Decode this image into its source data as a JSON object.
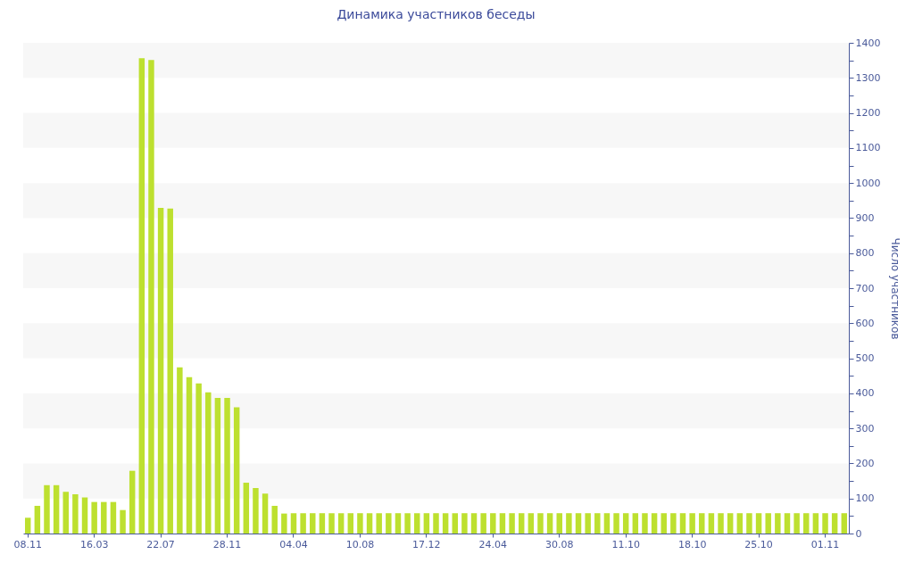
{
  "chart_data": {
    "type": "bar",
    "title": "Динамика участников беседы",
    "ylabel": "Число участников",
    "categories": [
      "08.11",
      null,
      null,
      null,
      null,
      null,
      null,
      "16.03",
      null,
      null,
      null,
      null,
      null,
      null,
      "22.07",
      null,
      null,
      null,
      null,
      null,
      null,
      "28.11",
      null,
      null,
      null,
      null,
      null,
      null,
      "04.04",
      null,
      null,
      null,
      null,
      null,
      null,
      "10.08",
      null,
      null,
      null,
      null,
      null,
      null,
      "17.12",
      null,
      null,
      null,
      null,
      null,
      null,
      "24.04",
      null,
      null,
      null,
      null,
      null,
      null,
      "30.08",
      null,
      null,
      null,
      null,
      null,
      null,
      "11.10",
      null,
      null,
      null,
      null,
      null,
      null,
      "18.10",
      null,
      null,
      null,
      null,
      null,
      null,
      "25.10",
      null,
      null,
      null,
      null,
      null,
      null,
      "01.11",
      null,
      null
    ],
    "values": [
      45,
      79,
      138,
      138,
      119,
      112,
      103,
      90,
      90,
      90,
      67,
      179,
      1356,
      1351,
      929,
      927,
      474,
      446,
      428,
      403,
      387,
      387,
      360,
      145,
      130,
      114,
      79,
      57,
      58,
      58,
      58,
      58,
      58,
      58,
      58,
      58,
      58,
      58,
      58,
      58,
      58,
      58,
      58,
      58,
      58,
      58,
      58,
      58,
      58,
      58,
      58,
      58,
      58,
      58,
      58,
      58,
      58,
      58,
      58,
      58,
      58,
      58,
      58,
      58,
      58,
      58,
      58,
      58,
      58,
      58,
      58,
      58,
      58,
      58,
      58,
      58,
      58,
      58,
      58,
      58,
      58,
      58,
      58,
      58,
      58,
      58,
      58
    ],
    "color": "#bde02f",
    "ylim": [
      0,
      1400
    ],
    "yticks": [
      0,
      {
        "value": 50,
        "label": null
      },
      100,
      {
        "value": 150,
        "label": null
      },
      200,
      {
        "value": 250,
        "label": null
      },
      300,
      {
        "value": 350,
        "label": null
      },
      400,
      {
        "value": 450,
        "label": null
      },
      500,
      {
        "value": 550,
        "label": null
      },
      600,
      {
        "value": 650,
        "label": null
      },
      700,
      {
        "value": 750,
        "label": null
      },
      800,
      {
        "value": 850,
        "label": null
      },
      900,
      {
        "value": 950,
        "label": null
      },
      1000,
      {
        "value": 1050,
        "label": null
      },
      1100,
      {
        "value": 1150,
        "label": null
      },
      1200,
      {
        "value": 1250,
        "label": null
      },
      1300,
      {
        "value": 1350,
        "label": null
      },
      1400
    ],
    "bands": [
      {
        "axis": "y",
        "from": 100,
        "to": 200,
        "color": "#f7f7f7"
      },
      {
        "axis": "y",
        "from": 300,
        "to": 400,
        "color": "#f7f7f7"
      },
      {
        "axis": "y",
        "from": 500,
        "to": 600,
        "color": "#f7f7f7"
      },
      {
        "axis": "y",
        "from": 700,
        "to": 800,
        "color": "#f7f7f7"
      },
      {
        "axis": "y",
        "from": 900,
        "to": 1000,
        "color": "#f7f7f7"
      },
      {
        "axis": "y",
        "from": 1100,
        "to": 1200,
        "color": "#f7f7f7"
      },
      {
        "axis": "y",
        "from": 1300,
        "to": 1400,
        "color": "#f7f7f7"
      }
    ]
  }
}
